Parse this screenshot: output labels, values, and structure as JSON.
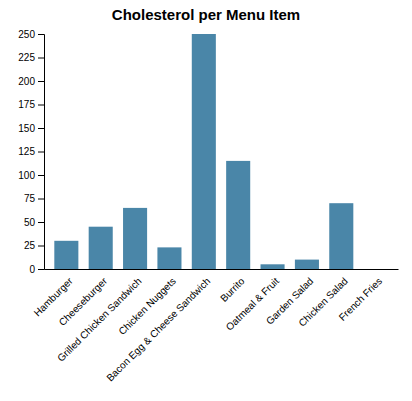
{
  "chart_data": {
    "type": "bar",
    "title": "Cholesterol per Menu Item",
    "categories": [
      "Hamburger",
      "Cheeseburger",
      "Grilled Chicken Sandwich",
      "Chicken Nuggets",
      "Bacon Egg & Cheese Sandwich",
      "Burrito",
      "Oatmeal & Fruit",
      "Garden Salad",
      "Chicken Salad",
      "French Fries"
    ],
    "values": [
      30,
      45,
      65,
      23,
      250,
      115,
      5,
      10,
      70,
      0
    ],
    "color": "#4a86a8",
    "ylim": [
      0,
      250
    ],
    "yticks": [
      0,
      25,
      50,
      75,
      100,
      125,
      150,
      175,
      200,
      225,
      250
    ],
    "grid": false
  }
}
